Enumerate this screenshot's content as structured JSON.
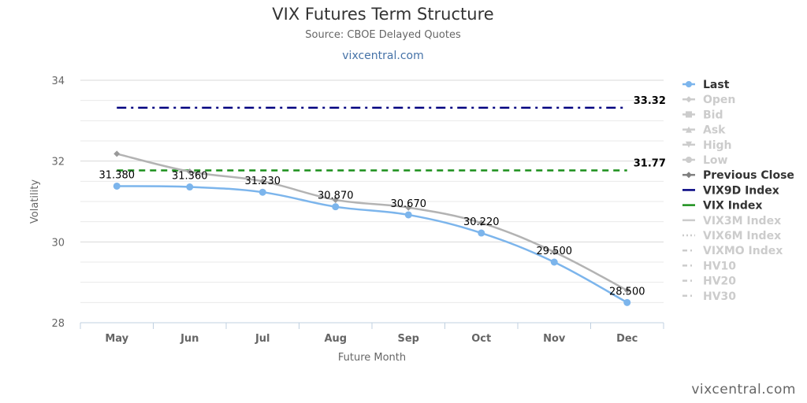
{
  "header": {
    "title": "VIX Futures Term Structure",
    "subtitle": "Source: CBOE Delayed Quotes",
    "site_link": "vixcentral.com"
  },
  "credit": "vixcentral.com",
  "chart_data": {
    "type": "line",
    "title": "VIX Futures Term Structure",
    "subtitle": "Source: CBOE Delayed Quotes",
    "xlabel": "Future Month",
    "ylabel": "Volatility",
    "categories": [
      "May",
      "Jun",
      "Jul",
      "Aug",
      "Sep",
      "Oct",
      "Nov",
      "Dec"
    ],
    "ylim": [
      28,
      34
    ],
    "yticks": [
      28,
      30,
      32,
      34
    ],
    "grid": true,
    "legend_position": "right",
    "series": [
      {
        "name": "Last",
        "color": "#7cb5ec",
        "style": "solid-markers",
        "visible": true,
        "values": [
          31.38,
          31.36,
          31.23,
          30.87,
          30.67,
          30.22,
          29.5,
          28.5
        ],
        "data_labels": [
          "31.380",
          "31.360",
          "31.230",
          "30.870",
          "30.670",
          "30.220",
          "29.500",
          "28.500"
        ]
      },
      {
        "name": "Previous Close",
        "color": "#b3b3b3",
        "style": "solid",
        "visible": true,
        "values": [
          32.18,
          31.74,
          31.5,
          31.04,
          30.85,
          30.47,
          29.75,
          28.8
        ]
      },
      {
        "name": "VIX9D Index",
        "color": "#000080",
        "style": "dash-dot",
        "visible": true,
        "value": 33.32,
        "label": "33.32"
      },
      {
        "name": "VIX Index",
        "color": "#1a8f1a",
        "style": "dash",
        "visible": true,
        "value": 31.77,
        "label": "31.77"
      }
    ],
    "legend": [
      {
        "name": "Last",
        "symbol": "line-circle",
        "active": true,
        "color": "#7cb5ec"
      },
      {
        "name": "Open",
        "symbol": "line-diamond",
        "active": false,
        "color": "#cccccc"
      },
      {
        "name": "Bid",
        "symbol": "line-square",
        "active": false,
        "color": "#cccccc"
      },
      {
        "name": "Ask",
        "symbol": "line-triangle",
        "active": false,
        "color": "#cccccc"
      },
      {
        "name": "High",
        "symbol": "line-triangle-down",
        "active": false,
        "color": "#cccccc"
      },
      {
        "name": "Low",
        "symbol": "line-circle",
        "active": false,
        "color": "#cccccc"
      },
      {
        "name": "Previous Close",
        "symbol": "line-diamond",
        "active": true,
        "color": "#808080"
      },
      {
        "name": "VIX9D Index",
        "symbol": "line",
        "active": true,
        "color": "#000080"
      },
      {
        "name": "VIX Index",
        "symbol": "line",
        "active": true,
        "color": "#1a8f1a"
      },
      {
        "name": "VIX3M Index",
        "symbol": "line",
        "active": false,
        "color": "#cccccc"
      },
      {
        "name": "VIX6M Index",
        "symbol": "dotted",
        "active": false,
        "color": "#cccccc"
      },
      {
        "name": "VIXMO Index",
        "symbol": "dash-dot",
        "active": false,
        "color": "#cccccc"
      },
      {
        "name": "HV10",
        "symbol": "dash-dot",
        "active": false,
        "color": "#cccccc"
      },
      {
        "name": "HV20",
        "symbol": "dash-dot",
        "active": false,
        "color": "#cccccc"
      },
      {
        "name": "HV30",
        "symbol": "dash-dot",
        "active": false,
        "color": "#cccccc"
      }
    ]
  }
}
